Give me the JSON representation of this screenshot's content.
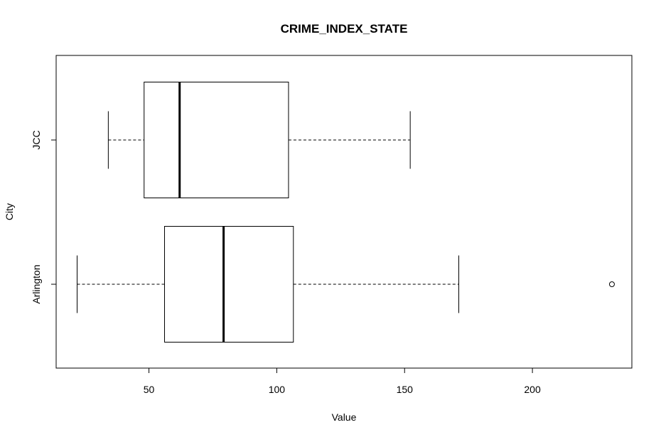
{
  "chart_data": {
    "type": "boxplot",
    "title": "CRIME_INDEX_STATE",
    "x_label": "Value",
    "y_label": "City",
    "categories": [
      "Arlington",
      "JCC"
    ],
    "series": [
      {
        "name": "Arlington",
        "min": 21.9,
        "q1": 56.1,
        "median": 79.2,
        "q3": 106.5,
        "max": 171.2,
        "outliers": [
          231.1
        ]
      },
      {
        "name": "JCC",
        "min": 34.1,
        "q1": 48.1,
        "median": 62,
        "q3": 104.6,
        "max": 152.2,
        "outliers": []
      }
    ],
    "xlim": [
      13.7,
      238.9
    ],
    "xticks": [
      50,
      100,
      150,
      200
    ],
    "color": "#000000"
  }
}
